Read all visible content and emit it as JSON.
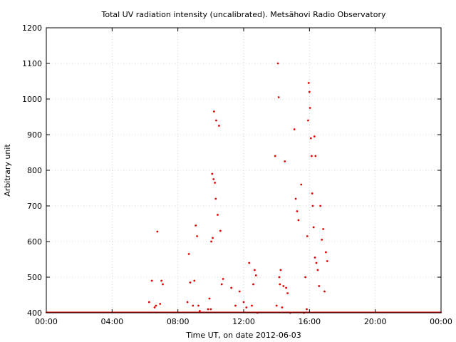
{
  "chart_data": {
    "type": "scatter",
    "title": "Total UV radiation intensity (uncalibrated). Metsähovi Radio Observatory",
    "xlabel": "Time UT, on date 2012-06-03",
    "ylabel": "Arbitrary unit",
    "xlim": [
      "00:00",
      "24:00"
    ],
    "ylim": [
      400,
      1200
    ],
    "x_ticks": [
      "00:00",
      "04:00",
      "08:00",
      "12:00",
      "16:00",
      "20:00",
      "00:00"
    ],
    "y_ticks": [
      400,
      500,
      600,
      700,
      800,
      900,
      1000,
      1100,
      1200
    ],
    "grid": true,
    "series_color": "#e00000",
    "baseline": 400,
    "series": [
      {
        "x": [
          "06:15",
          "06:25",
          "06:35",
          "06:40",
          "06:45",
          "06:55",
          "07:00",
          "07:05",
          "08:35",
          "08:40",
          "08:45",
          "08:55",
          "09:00",
          "09:05",
          "09:10",
          "09:15",
          "09:20",
          "09:50",
          "09:55",
          "10:00",
          "10:02",
          "10:05",
          "10:07",
          "10:10",
          "10:12",
          "10:15",
          "10:18",
          "10:20",
          "10:25",
          "10:30",
          "10:35",
          "10:40",
          "10:45",
          "11:15",
          "11:30",
          "11:45",
          "12:00",
          "12:10",
          "12:20",
          "12:30",
          "12:35",
          "12:40",
          "12:45",
          "12:50",
          "13:55",
          "14:00",
          "14:05",
          "14:08",
          "14:10",
          "14:12",
          "14:15",
          "14:20",
          "14:25",
          "14:30",
          "14:35",
          "14:40",
          "14:50",
          "15:05",
          "15:10",
          "15:15",
          "15:20",
          "15:30",
          "15:40",
          "15:45",
          "15:50",
          "15:52",
          "15:55",
          "15:57",
          "16:00",
          "16:02",
          "16:05",
          "16:08",
          "16:10",
          "16:12",
          "16:15",
          "16:18",
          "16:20",
          "16:22",
          "16:25",
          "16:30",
          "16:35",
          "16:40",
          "16:45",
          "16:50",
          "16:55",
          "17:00",
          "17:05"
        ],
        "y": [
          430,
          490,
          415,
          420,
          628,
          425,
          490,
          480,
          430,
          565,
          485,
          420,
          490,
          645,
          615,
          420,
          405,
          410,
          440,
          410,
          600,
          790,
          610,
          775,
          965,
          765,
          720,
          940,
          675,
          925,
          630,
          480,
          495,
          470,
          420,
          460,
          430,
          415,
          540,
          420,
          480,
          520,
          505,
          400,
          840,
          420,
          1100,
          1005,
          500,
          480,
          520,
          415,
          475,
          825,
          470,
          455,
          400,
          915,
          720,
          685,
          660,
          760,
          400,
          500,
          410,
          615,
          940,
          1045,
          1020,
          975,
          890,
          840,
          735,
          700,
          640,
          895,
          555,
          840,
          540,
          520,
          475,
          700,
          605,
          635,
          460,
          570,
          545
        ]
      }
    ]
  }
}
